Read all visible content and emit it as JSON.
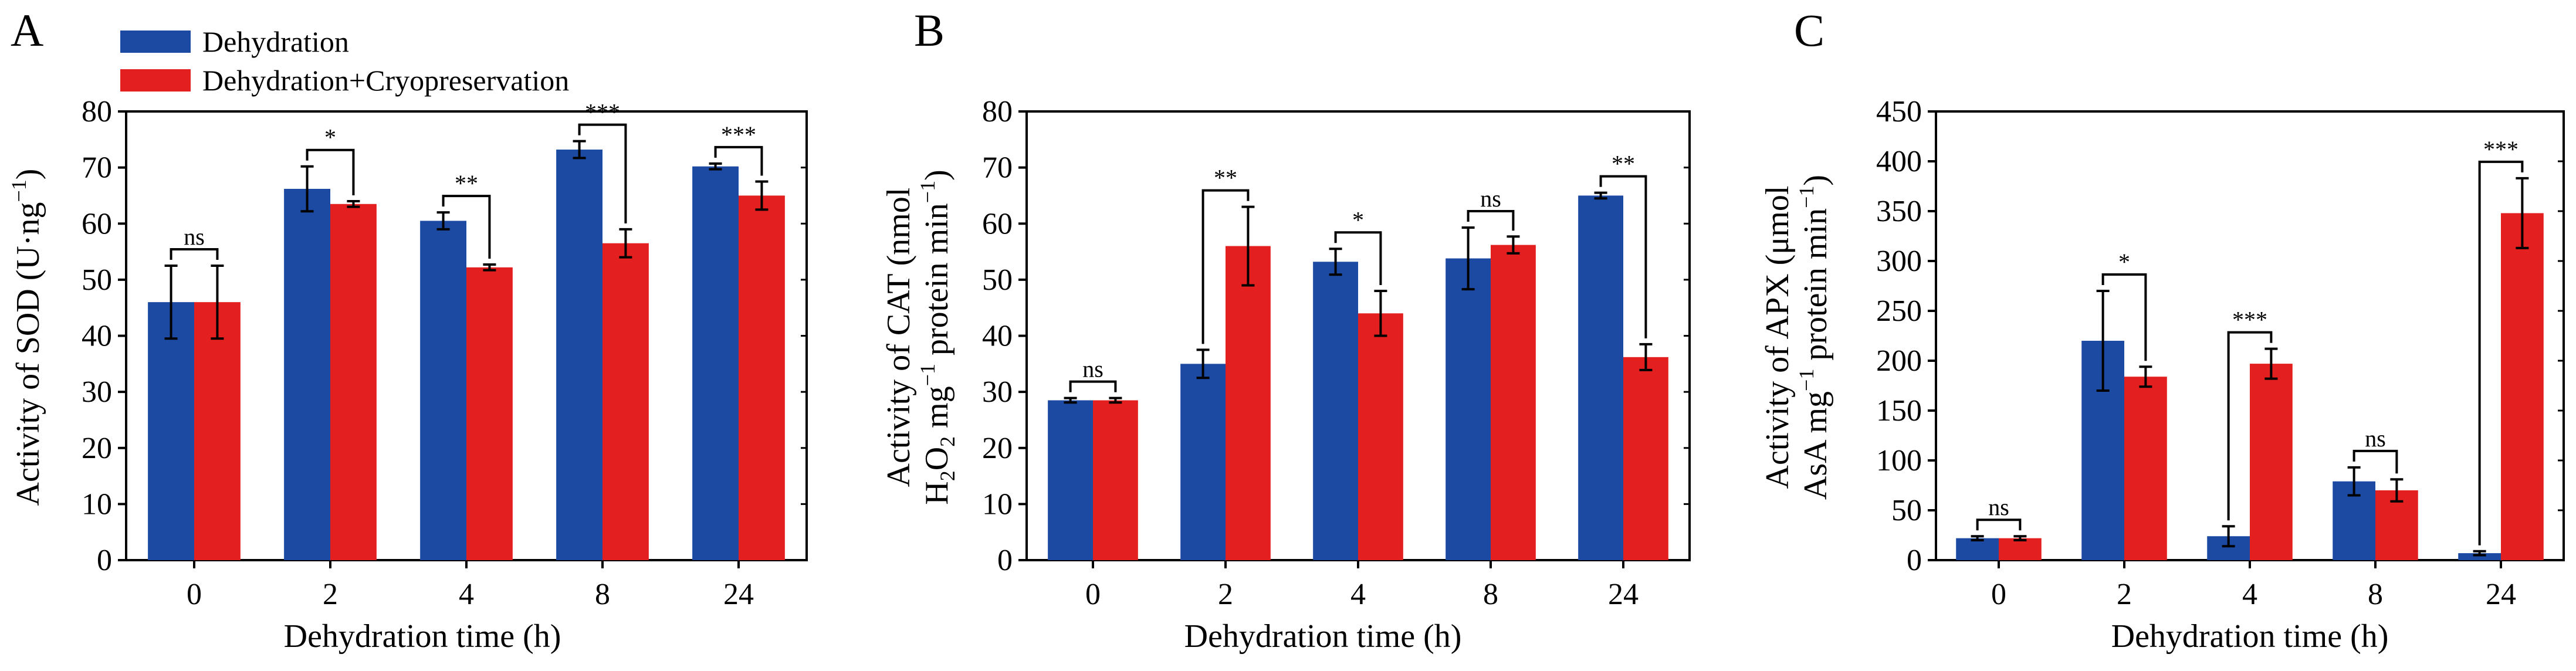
{
  "legend": {
    "entries": [
      {
        "label": "Dehydration",
        "color": "#1c4aa3"
      },
      {
        "label": "Dehydration+Cryopreservation",
        "color": "#e3201f"
      }
    ]
  },
  "chart_data": [
    {
      "panel": "A",
      "type": "bar",
      "categories": [
        "0",
        "2",
        "4",
        "8",
        "24"
      ],
      "series": [
        {
          "name": "Dehydration",
          "values": [
            46,
            66.2,
            60.5,
            73.2,
            70.2
          ],
          "errors": [
            6.5,
            4.0,
            1.5,
            1.5,
            0.5
          ]
        },
        {
          "name": "Dehydration+Cryopreservation",
          "values": [
            46,
            63.5,
            52.2,
            56.5,
            65.0
          ],
          "errors": [
            6.5,
            0.5,
            0.5,
            2.5,
            2.5
          ]
        }
      ],
      "significance": [
        "ns",
        "*",
        "**",
        "***",
        "***"
      ],
      "xlabel": "Dehydration time (h)",
      "ylabel": [
        "Activity of SOD (U·ng",
        "−1",
        ")"
      ],
      "ylim": [
        0,
        80
      ],
      "yticks": [
        0,
        10,
        20,
        30,
        40,
        50,
        60,
        70,
        80
      ]
    },
    {
      "panel": "B",
      "type": "bar",
      "categories": [
        "0",
        "2",
        "4",
        "8",
        "24"
      ],
      "series": [
        {
          "name": "Dehydration",
          "values": [
            28.5,
            35.0,
            53.2,
            53.8,
            65.0
          ],
          "errors": [
            0.4,
            2.5,
            2.3,
            5.5,
            0.5
          ]
        },
        {
          "name": "Dehydration+Cryopreservation",
          "values": [
            28.5,
            56.0,
            44.0,
            56.2,
            36.2
          ],
          "errors": [
            0.4,
            7.0,
            4.0,
            1.5,
            2.3
          ]
        }
      ],
      "significance": [
        "ns",
        "**",
        "*",
        "ns",
        "**"
      ],
      "xlabel": "Dehydration time (h)",
      "ylabel": [
        "Activity of CAT (nmol",
        "H",
        "2",
        "O",
        "2",
        " mg",
        "−1",
        " protein min",
        "−1",
        ")"
      ],
      "ylim": [
        0,
        80
      ],
      "yticks": [
        0,
        10,
        20,
        30,
        40,
        50,
        60,
        70,
        80
      ]
    },
    {
      "panel": "C",
      "type": "bar",
      "categories": [
        "0",
        "2",
        "4",
        "8",
        "24"
      ],
      "series": [
        {
          "name": "Dehydration",
          "values": [
            22,
            220,
            24,
            79,
            7
          ],
          "errors": [
            2,
            50,
            10,
            14,
            2
          ]
        },
        {
          "name": "Dehydration+Cryopreservation",
          "values": [
            22,
            184,
            197,
            70,
            348
          ],
          "errors": [
            2,
            10,
            15,
            11,
            35
          ]
        }
      ],
      "significance": [
        "ns",
        "*",
        "***",
        "ns",
        "***"
      ],
      "xlabel": "Dehydration time (h)",
      "ylabel": [
        "Activity of APX (μmol",
        "AsA mg",
        "−1",
        " protein min",
        "−1",
        ")"
      ],
      "ylim": [
        0,
        450
      ],
      "yticks": [
        0,
        50,
        100,
        150,
        200,
        250,
        300,
        350,
        400,
        450
      ]
    }
  ]
}
